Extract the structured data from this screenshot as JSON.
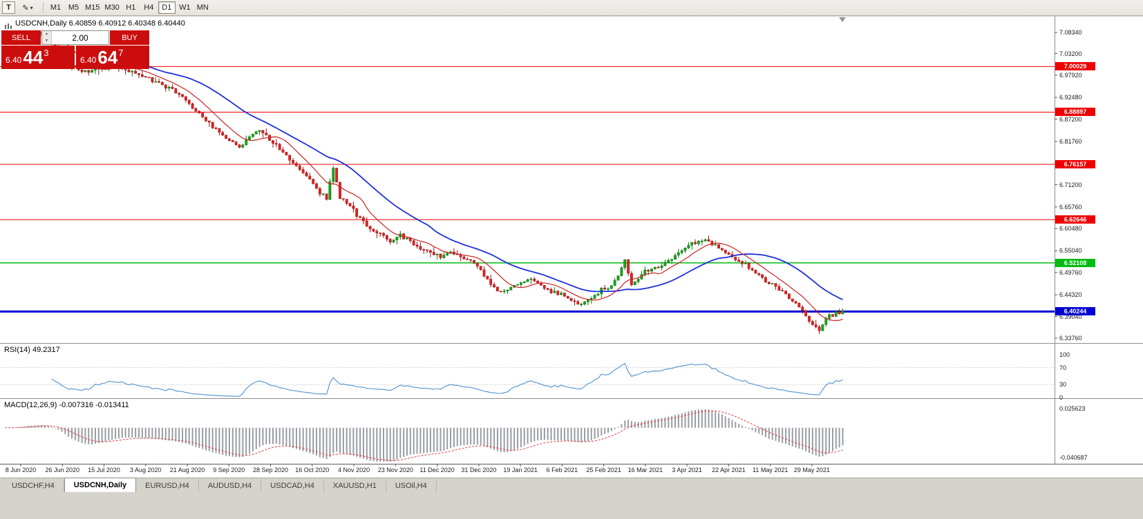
{
  "toolbar": {
    "t_button": "T",
    "timeframes": [
      "M1",
      "M5",
      "M15",
      "M30",
      "H1",
      "H4",
      "D1",
      "W1",
      "MN"
    ],
    "active_timeframe": "D1"
  },
  "header": {
    "title": "USDCNH,Daily 6.40859 6.40912 6.40348 6.40440"
  },
  "trade_panel": {
    "sell_label": "SELL",
    "buy_label": "BUY",
    "volume": "2.00",
    "sell_price": {
      "prefix": "6.40",
      "big": "44",
      "sup": "3"
    },
    "buy_price": {
      "prefix": "6.40",
      "big": "64",
      "sup": "7"
    }
  },
  "tabs": {
    "items": [
      "USDCHF,H4",
      "USDCNH,Daily",
      "EURUSD,H4",
      "AUDUSD,H4",
      "USDCAD,H4",
      "XAUUSD,H1",
      "USOil,H4"
    ],
    "active": "USDCNH,Daily"
  },
  "colors": {
    "bull": "#17a817",
    "bull_border": "#0e720e",
    "bear": "#e32424",
    "bear_border": "#9c1010",
    "panel_red": "#cb0d0d",
    "macd_hist": "#979ca3",
    "macd_signal": "#e04040",
    "rsi_levels_line": "#b5b5b5"
  },
  "chart_data": {
    "type": "candlestick",
    "symbol": "USDCNH",
    "timeframe": "Daily",
    "ohlc_readout": {
      "open": "6.40859",
      "high": "6.40912",
      "low": "6.40348",
      "close": "6.40440"
    },
    "bar_count": 251,
    "last_close": 6.4044,
    "price_path": [
      [
        0,
        7.065
      ],
      [
        6,
        7.076
      ],
      [
        11,
        7.084
      ],
      [
        15,
        7.055
      ],
      [
        19,
        7.005
      ],
      [
        23,
        6.988
      ],
      [
        27,
        6.993
      ],
      [
        31,
        7.002
      ],
      [
        35,
        6.998
      ],
      [
        39,
        6.985
      ],
      [
        43,
        6.97
      ],
      [
        47,
        6.955
      ],
      [
        51,
        6.938
      ],
      [
        55,
        6.908
      ],
      [
        59,
        6.878
      ],
      [
        63,
        6.848
      ],
      [
        67,
        6.82
      ],
      [
        70,
        6.802
      ],
      [
        73,
        6.83
      ],
      [
        76,
        6.846
      ],
      [
        79,
        6.822
      ],
      [
        83,
        6.79
      ],
      [
        86,
        6.765
      ],
      [
        89,
        6.742
      ],
      [
        92,
        6.712
      ],
      [
        94,
        6.69
      ],
      [
        96,
        6.678
      ],
      [
        98,
        6.755
      ],
      [
        100,
        6.68
      ],
      [
        103,
        6.662
      ],
      [
        106,
        6.628
      ],
      [
        109,
        6.605
      ],
      [
        112,
        6.59
      ],
      [
        115,
        6.572
      ],
      [
        118,
        6.59
      ],
      [
        121,
        6.572
      ],
      [
        124,
        6.558
      ],
      [
        127,
        6.55
      ],
      [
        130,
        6.538
      ],
      [
        133,
        6.548
      ],
      [
        136,
        6.535
      ],
      [
        139,
        6.528
      ],
      [
        142,
        6.505
      ],
      [
        145,
        6.468
      ],
      [
        148,
        6.448
      ],
      [
        151,
        6.458
      ],
      [
        154,
        6.476
      ],
      [
        157,
        6.48
      ],
      [
        160,
        6.468
      ],
      [
        163,
        6.452
      ],
      [
        166,
        6.445
      ],
      [
        169,
        6.43
      ],
      [
        172,
        6.418
      ],
      [
        175,
        6.438
      ],
      [
        178,
        6.455
      ],
      [
        181,
        6.462
      ],
      [
        183,
        6.492
      ],
      [
        185,
        6.525
      ],
      [
        187,
        6.47
      ],
      [
        189,
        6.482
      ],
      [
        191,
        6.502
      ],
      [
        194,
        6.508
      ],
      [
        197,
        6.522
      ],
      [
        200,
        6.54
      ],
      [
        203,
        6.558
      ],
      [
        206,
        6.572
      ],
      [
        209,
        6.576
      ],
      [
        212,
        6.562
      ],
      [
        215,
        6.548
      ],
      [
        218,
        6.53
      ],
      [
        221,
        6.518
      ],
      [
        224,
        6.495
      ],
      [
        227,
        6.478
      ],
      [
        230,
        6.462
      ],
      [
        233,
        6.445
      ],
      [
        236,
        6.42
      ],
      [
        239,
        6.392
      ],
      [
        241,
        6.372
      ],
      [
        243,
        6.36
      ],
      [
        245,
        6.385
      ],
      [
        247,
        6.396
      ],
      [
        249,
        6.401
      ],
      [
        250,
        6.404
      ]
    ],
    "y_axis_ticks": [
      "7.08340",
      "7.03200",
      "6.97920",
      "6.92480",
      "6.87200",
      "6.81760",
      "6.76480",
      "6.71200",
      "6.65760",
      "6.60480",
      "6.55040",
      "6.49760",
      "6.44320",
      "6.39040",
      "6.33760"
    ],
    "x_axis_dates": [
      "8 Jun 2020",
      "26 Jun 2020",
      "15 Jul 2020",
      "3 Aug 2020",
      "21 Aug 2020",
      "9 Sep 2020",
      "28 Sep 2020",
      "16 Oct 2020",
      "4 Nov 2020",
      "23 Nov 2020",
      "11 Dec 2020",
      "31 Dec 2020",
      "19 Jan 2021",
      "6 Feb 2021",
      "25 Feb 2021",
      "16 Mar 2021",
      "3 Apr 2021",
      "22 Apr 2021",
      "11 May 2021",
      "29 May 2021"
    ],
    "levels": [
      {
        "label": "7.00029",
        "value": 7.00029,
        "color": "#ee0000",
        "width": 1
      },
      {
        "label": "6.88897",
        "value": 6.88897,
        "color": "#ee0000",
        "width": 1
      },
      {
        "label": "6.76157",
        "value": 6.76157,
        "color": "#ee0000",
        "width": 1
      },
      {
        "label": "6.62646",
        "value": 6.62646,
        "color": "#ee0000",
        "width": 1
      },
      {
        "label": "6.52108",
        "value": 6.52108,
        "color": "#00bb11",
        "width": 1.5
      },
      {
        "label": "6.40244",
        "value": 6.40244,
        "color": "#0000d0",
        "width": 3
      }
    ],
    "indicators": {
      "ma_fast": {
        "type": "moving-average",
        "period": 10,
        "color": "#cc2020"
      },
      "ma_slow": {
        "type": "moving-average",
        "period": 30,
        "color": "#1c2fd8"
      },
      "rsi": {
        "label": "RSI(14) 49.2317",
        "period": 14,
        "value": "49.2317",
        "color": "#4f8fd0",
        "axis_levels": [
          100,
          70,
          30,
          0
        ],
        "dashed_levels": [
          70,
          30
        ]
      },
      "macd": {
        "label": "MACD(12,26,9) -0.007316 -0.013411",
        "params": "12,26,9",
        "value": "-0.007316",
        "signal_value": "-0.013411",
        "axis_max": "0.025623",
        "axis_min": "-0.040687"
      }
    }
  }
}
